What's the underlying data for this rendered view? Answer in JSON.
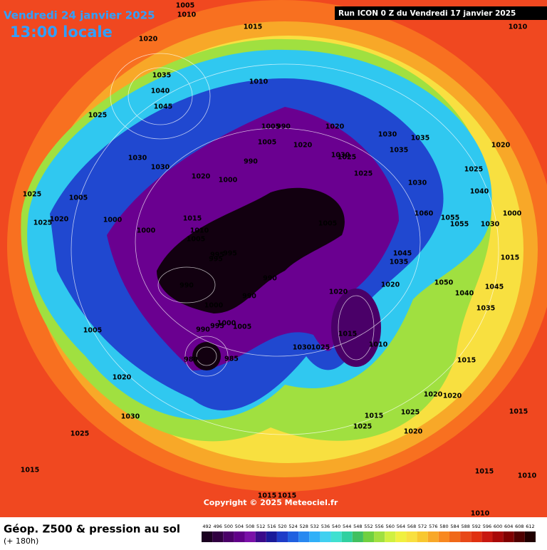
{
  "header": {
    "date": "Vendredi 24 janvier 2025",
    "time": "13:00 locale",
    "run": "Run ICON 0 Z du Vendredi 17 janvier 2025"
  },
  "map": {
    "pressure_labels": [
      "1005",
      "1010",
      "1015",
      "1020",
      "1010",
      "1035",
      "1040",
      "1045",
      "1025",
      "1010",
      "1005",
      "990",
      "1005",
      "1020",
      "1020",
      "1030",
      "1035",
      "1035",
      "1020",
      "1030",
      "1025",
      "1025",
      "1030",
      "1030",
      "990",
      "1020",
      "1000",
      "1030",
      "1025",
      "1040",
      "1025",
      "1005",
      "1000",
      "1000",
      "1015",
      "1010",
      "1005",
      "1005",
      "1060",
      "1055",
      "1055",
      "1030",
      "1000",
      "1025",
      "1020",
      "995",
      "995",
      "995",
      "990",
      "990",
      "990",
      "1000",
      "1000",
      "1005",
      "990",
      "995",
      "1045",
      "1035",
      "1020",
      "1020",
      "1050",
      "1040",
      "1045",
      "1015",
      "1035",
      "1005",
      "1015",
      "1010",
      "1030",
      "1025",
      "1015",
      "1020",
      "1030",
      "1025",
      "1015",
      "1025",
      "1025",
      "1020",
      "1020",
      "1020",
      "1015",
      "1015",
      "1015",
      "1010",
      "1015",
      "1015",
      "1010",
      "985",
      "980"
    ]
  },
  "copyright": "Copyright © 2025 Meteociel.fr",
  "footer": {
    "title": "Géop. Z500 & pression au sol",
    "lead": "(+ 180h)"
  },
  "colorbar": {
    "ticks": [
      492,
      496,
      500,
      504,
      508,
      512,
      516,
      520,
      524,
      528,
      532,
      536,
      540,
      544,
      548,
      552,
      556,
      560,
      564,
      568,
      572,
      576,
      580,
      584,
      588,
      592,
      596,
      600,
      604,
      608,
      612
    ],
    "colors": [
      "#1a0020",
      "#300040",
      "#4a0068",
      "#600088",
      "#7a10a8",
      "#3a0a8a",
      "#1a1a9a",
      "#1e3cc8",
      "#2060e0",
      "#2888f0",
      "#30b0f8",
      "#40d0f0",
      "#40e0d0",
      "#30d0a0",
      "#40c060",
      "#70d040",
      "#a0e040",
      "#d0f040",
      "#f0f040",
      "#f8e040",
      "#f8c830",
      "#f8a828",
      "#f88820",
      "#f06818",
      "#e84818",
      "#e03010",
      "#c81810",
      "#a80808",
      "#800000",
      "#500000",
      "#200000"
    ]
  }
}
